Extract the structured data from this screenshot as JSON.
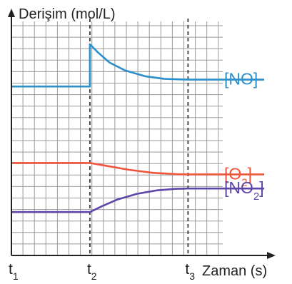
{
  "chart_data": {
    "type": "line",
    "ylabel": "Derişim (mol/L)",
    "xlabel": "Zaman (s)",
    "x_ticks": [
      {
        "main": "t",
        "sub": "1",
        "x": 0
      },
      {
        "main": "t",
        "sub": "2",
        "x": 1
      },
      {
        "main": "t",
        "sub": "3",
        "x": 2.25
      }
    ],
    "xlim": [
      0,
      3.22
    ],
    "ylim": [
      0,
      1
    ],
    "grid": true,
    "series": [
      {
        "pre": "[NO",
        "sub": "",
        "post": "]",
        "color": "#2b8fcc",
        "points": [
          [
            0,
            0.74
          ],
          [
            1,
            0.74
          ],
          [
            1,
            0.925
          ],
          [
            1.1,
            0.89
          ],
          [
            1.25,
            0.845
          ],
          [
            1.45,
            0.81
          ],
          [
            1.7,
            0.785
          ],
          [
            1.95,
            0.773
          ],
          [
            2.25,
            0.77
          ],
          [
            3.22,
            0.77
          ]
        ]
      },
      {
        "pre": "[O",
        "sub": "2",
        "post": "]",
        "color": "#f0543a",
        "points": [
          [
            0,
            0.405
          ],
          [
            1,
            0.405
          ],
          [
            1.2,
            0.393
          ],
          [
            1.5,
            0.375
          ],
          [
            1.8,
            0.362
          ],
          [
            2.1,
            0.356
          ],
          [
            2.25,
            0.355
          ],
          [
            3.22,
            0.355
          ]
        ]
      },
      {
        "pre": "[NO",
        "sub": "2",
        "post": "]",
        "color": "#5c46a8",
        "points": [
          [
            0,
            0.19
          ],
          [
            1,
            0.19
          ],
          [
            1.15,
            0.215
          ],
          [
            1.35,
            0.245
          ],
          [
            1.6,
            0.27
          ],
          [
            1.85,
            0.285
          ],
          [
            2.1,
            0.292
          ],
          [
            2.25,
            0.293
          ],
          [
            3.22,
            0.293
          ]
        ]
      }
    ],
    "dashed_at": [
      1,
      2.25
    ]
  }
}
